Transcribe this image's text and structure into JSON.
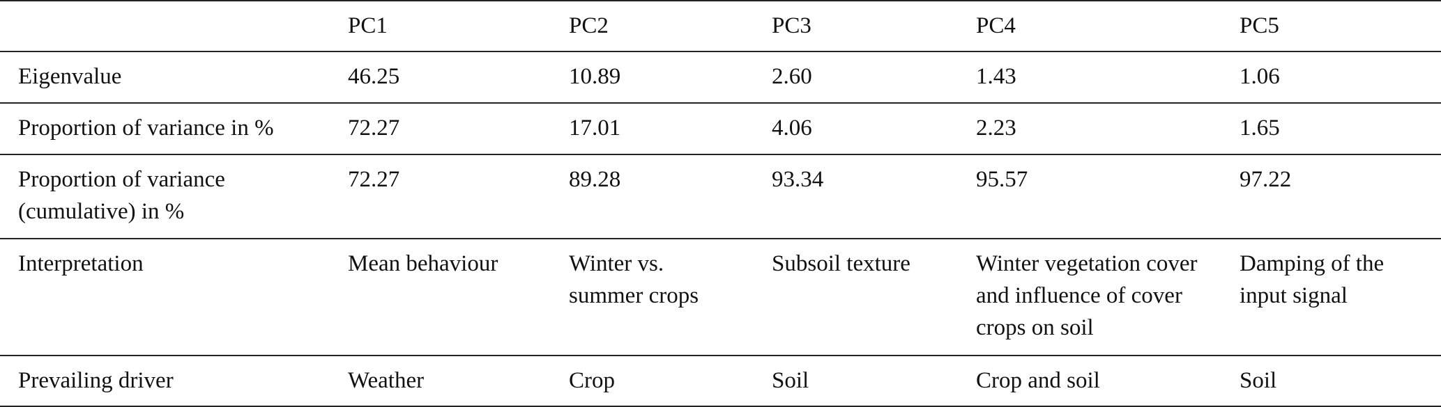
{
  "table": {
    "headers": [
      "",
      "PC1",
      "PC2",
      "PC3",
      "PC4",
      "PC5"
    ],
    "rows": [
      {
        "label": "Eigenvalue",
        "values": [
          "46.25",
          "10.89",
          "2.60",
          "1.43",
          "1.06"
        ]
      },
      {
        "label": "Proportion of variance in %",
        "values": [
          "72.27",
          "17.01",
          "4.06",
          "2.23",
          "1.65"
        ]
      },
      {
        "label": "Proportion of variance (cumulative) in %",
        "values": [
          "72.27",
          "89.28",
          "93.34",
          "95.57",
          "97.22"
        ]
      },
      {
        "label": "Interpretation",
        "values": [
          "Mean behaviour",
          "Winter vs. summer crops",
          "Subsoil texture",
          "Winter vegetation cover and influence of cover crops on soil",
          "Damping of the input signal"
        ]
      },
      {
        "label": "Prevailing driver",
        "values": [
          "Weather",
          "Crop",
          "Soil",
          "Crop and soil",
          "Soil"
        ]
      }
    ]
  }
}
